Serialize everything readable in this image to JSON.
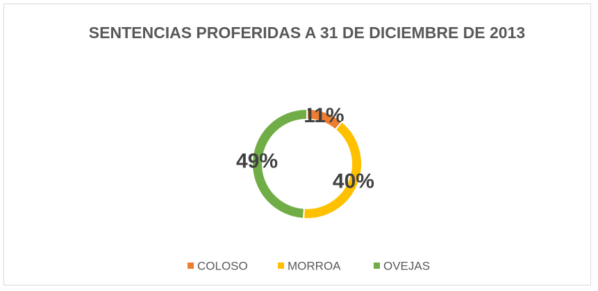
{
  "chart_data": {
    "type": "donut",
    "title": "SENTENCIAS PROFERIDAS A 31 DE DICIEMBRE DE 2013",
    "categories": [
      "COLOSO",
      "MORROA",
      "OVEJAS"
    ],
    "values": [
      11,
      40,
      49
    ],
    "value_labels": [
      "11%",
      "40%",
      "49%"
    ],
    "colors": [
      "#ED7D31",
      "#FFC000",
      "#70AD47"
    ],
    "legend": "bottom"
  }
}
